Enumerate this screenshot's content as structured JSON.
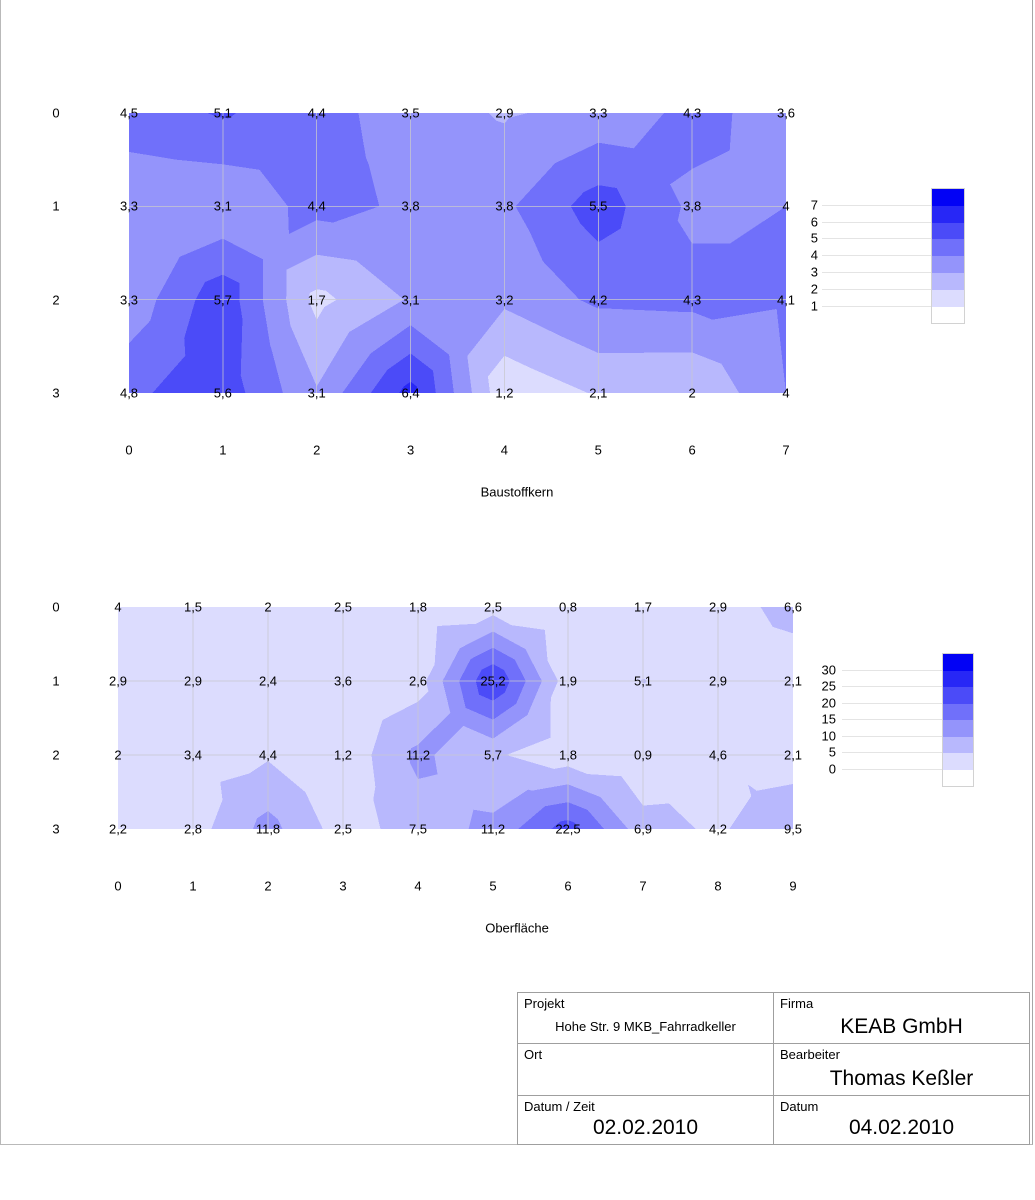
{
  "page": {
    "background": "#ffffff",
    "frame_color": "#b9b9b9"
  },
  "chart_data": [
    {
      "type": "heatmap",
      "name": "baustoffkern",
      "title": "",
      "xlabel": "Baustoffkern",
      "ylabel": "",
      "x_ticks": [
        "0",
        "1",
        "2",
        "3",
        "4",
        "5",
        "6",
        "7"
      ],
      "y_ticks": [
        "0",
        "1",
        "2",
        "3"
      ],
      "values": [
        [
          4.5,
          5.1,
          4.4,
          3.5,
          2.9,
          3.3,
          4.3,
          3.6
        ],
        [
          3.3,
          3.1,
          4.4,
          3.8,
          3.8,
          5.5,
          3.8,
          4.0
        ],
        [
          3.3,
          5.7,
          1.7,
          3.1,
          3.2,
          4.2,
          4.3,
          4.1
        ],
        [
          4.8,
          5.6,
          3.1,
          6.4,
          1.2,
          2.1,
          2.0,
          4.0
        ]
      ],
      "values_display": [
        [
          "4,5",
          "5,1",
          "4,4",
          "3,5",
          "2,9",
          "3,3",
          "4,3",
          "3,6"
        ],
        [
          "3,3",
          "3,1",
          "4,4",
          "3,8",
          "3,8",
          "5,5",
          "3,8",
          "4"
        ],
        [
          "3,3",
          "5,7",
          "1,7",
          "3,1",
          "3,2",
          "4,2",
          "4,3",
          "4,1"
        ],
        [
          "4,8",
          "5,6",
          "3,1",
          "6,4",
          "1,2",
          "2,1",
          "2",
          "4"
        ]
      ],
      "contour_thresholds": [
        1,
        2,
        3,
        4,
        5,
        6,
        7
      ],
      "legend_labels": [
        "7",
        "6",
        "5",
        "4",
        "3",
        "2",
        "1"
      ],
      "band_colors": [
        "#ffffff",
        "#dcdcfe",
        "#b8b8fd",
        "#9494fb",
        "#7070fa",
        "#4b4bf8",
        "#2727f6",
        "#0202f5"
      ],
      "grid": true,
      "legend_position": "right"
    },
    {
      "type": "heatmap",
      "name": "oberflaeche",
      "title": "",
      "xlabel": "Oberfläche",
      "ylabel": "",
      "x_ticks": [
        "0",
        "1",
        "2",
        "3",
        "4",
        "5",
        "6",
        "7",
        "8",
        "9"
      ],
      "y_ticks": [
        "0",
        "1",
        "2",
        "3"
      ],
      "values": [
        [
          4.0,
          1.5,
          2.0,
          2.5,
          1.8,
          2.5,
          0.8,
          1.7,
          2.9,
          6.6
        ],
        [
          2.9,
          2.9,
          2.4,
          3.6,
          2.6,
          25.2,
          1.9,
          5.1,
          2.9,
          2.1
        ],
        [
          2.0,
          3.4,
          4.4,
          1.2,
          11.2,
          5.7,
          1.8,
          0.9,
          4.6,
          2.1
        ],
        [
          2.2,
          2.8,
          11.8,
          2.5,
          7.5,
          11.2,
          22.5,
          6.9,
          4.2,
          9.5
        ]
      ],
      "values_display": [
        [
          "4",
          "1,5",
          "2",
          "2,5",
          "1,8",
          "2,5",
          "0,8",
          "1,7",
          "2,9",
          "6,6"
        ],
        [
          "2,9",
          "2,9",
          "2,4",
          "3,6",
          "2,6",
          "25,2",
          "1,9",
          "5,1",
          "2,9",
          "2,1"
        ],
        [
          "2",
          "3,4",
          "4,4",
          "1,2",
          "11,2",
          "5,7",
          "1,8",
          "0,9",
          "4,6",
          "2,1"
        ],
        [
          "2,2",
          "2,8",
          "11,8",
          "2,5",
          "7,5",
          "11,2",
          "22,5",
          "6,9",
          "4,2",
          "9,5"
        ]
      ],
      "contour_thresholds": [
        0,
        5,
        10,
        15,
        20,
        25,
        30
      ],
      "legend_labels": [
        "30",
        "25",
        "20",
        "15",
        "10",
        "5",
        "0"
      ],
      "band_colors": [
        "#ffffff",
        "#dcdcfe",
        "#b8b8fd",
        "#9494fb",
        "#7070fa",
        "#4b4bf8",
        "#2727f6",
        "#0202f5"
      ],
      "grid": true,
      "legend_position": "right"
    }
  ],
  "info_table": {
    "cells": [
      {
        "label": "Projekt",
        "value": "Hohe Str. 9 MKB_Fahrradkeller",
        "size": "small"
      },
      {
        "label": "Firma",
        "value": "KEAB GmbH",
        "size": "large"
      },
      {
        "label": "Ort",
        "value": "",
        "size": "large"
      },
      {
        "label": "Bearbeiter",
        "value": "Thomas Keßler",
        "size": "large"
      },
      {
        "label": "Datum / Zeit",
        "value": "02.02.2010",
        "size": "large"
      },
      {
        "label": "Datum",
        "value": "04.02.2010",
        "size": "large"
      }
    ]
  }
}
